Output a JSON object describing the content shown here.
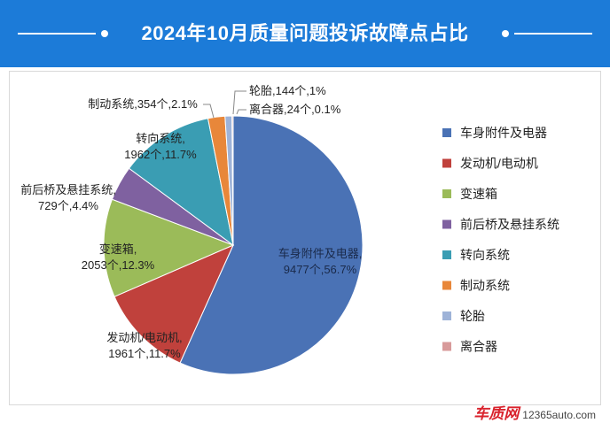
{
  "header": {
    "title": "2024年10月质量问题投诉故障点占比"
  },
  "footer": {
    "brand": "车质网",
    "site": "12365auto.com"
  },
  "chart_data": {
    "type": "pie",
    "title": "2024年10月质量问题投诉故障点占比",
    "unit": "个",
    "legend_position": "right",
    "slices": [
      {
        "name": "车身附件及电器",
        "count": 9477,
        "percent": "56.7%",
        "label": [
          "车身附件及电器,",
          "9477个,56.7%"
        ],
        "color": "#4a72b5"
      },
      {
        "name": "发动机/电动机",
        "count": 1961,
        "percent": "11.7%",
        "label": [
          "发动机/电动机,",
          "1961个,11.7%"
        ],
        "color": "#c0413c"
      },
      {
        "name": "变速箱",
        "count": 2053,
        "percent": "12.3%",
        "label": [
          "变速箱,",
          "2053个,12.3%"
        ],
        "color": "#9bbb59"
      },
      {
        "name": "前后桥及悬挂系统",
        "count": 729,
        "percent": "4.4%",
        "label": [
          "前后桥及悬挂系统,",
          "729个,4.4%"
        ],
        "color": "#7f61a0"
      },
      {
        "name": "转向系统",
        "count": 1962,
        "percent": "11.7%",
        "label": [
          "转向系统,",
          "1962个,11.7%"
        ],
        "color": "#3a9db3"
      },
      {
        "name": "制动系统",
        "count": 354,
        "percent": "2.1%",
        "label": [
          "制动系统,354个,2.1%"
        ],
        "color": "#e8873a"
      },
      {
        "name": "轮胎",
        "count": 144,
        "percent": "1%",
        "label": [
          "轮胎,144个,1%"
        ],
        "color": "#9eb3d8"
      },
      {
        "name": "离合器",
        "count": 24,
        "percent": "0.1%",
        "label": [
          "离合器,24个,0.1%"
        ],
        "color": "#d89a9a"
      }
    ]
  }
}
